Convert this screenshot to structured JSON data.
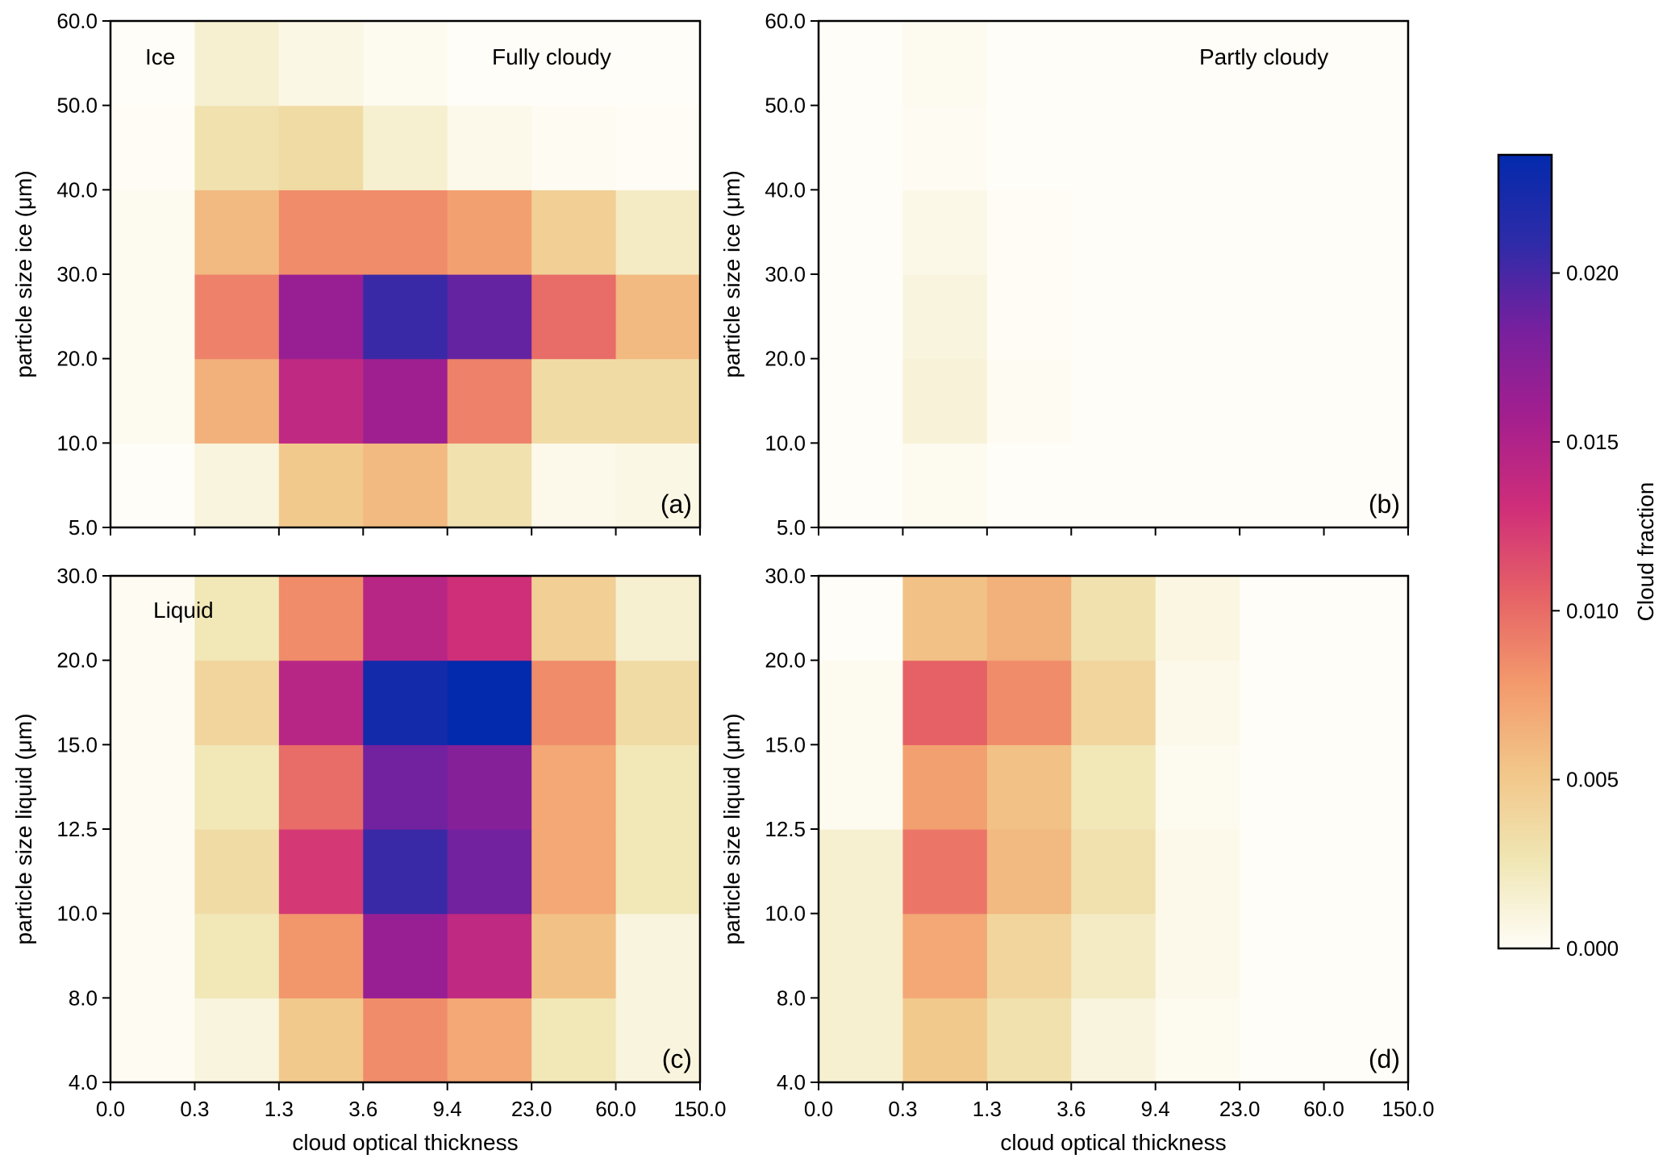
{
  "chart_data": {
    "type": "heatmap",
    "colormap": {
      "name": "magma_r",
      "stops": [
        "#fffdf7",
        "#f0e6b4",
        "#f2c689",
        "#f39a6c",
        "#e66266",
        "#cf2e79",
        "#a51f8e",
        "#78209e",
        "#2e2ba8",
        "#032aac"
      ]
    },
    "colorbar": {
      "label": "Cloud fraction",
      "min": 0.0,
      "max": 0.0235,
      "ticks": [
        "0.000",
        "0.005",
        "0.010",
        "0.015",
        "0.020"
      ],
      "tick_values": [
        0.0,
        0.005,
        0.01,
        0.015,
        0.02
      ]
    },
    "x_tick_labels": [
      "0.0",
      "0.3",
      "1.3",
      "3.6",
      "9.4",
      "23.0",
      "60.0",
      "150.0"
    ],
    "panels": [
      {
        "tag": "(a)",
        "notes": [
          "Ice",
          "Fully cloudy"
        ],
        "xlabel": "",
        "ylabel": "particle size ice  (μm)",
        "y_tick_labels": [
          "5.0",
          "10.0",
          "20.0",
          "30.0",
          "40.0",
          "50.0",
          "60.0"
        ],
        "show_x_tick_labels": false,
        "values": [
          [
            0.0,
            0.001,
            0.005,
            0.006,
            0.003,
            0.0005,
            0.0007
          ],
          [
            0.0003,
            0.0065,
            0.014,
            0.016,
            0.009,
            0.0035,
            0.0035
          ],
          [
            0.0003,
            0.009,
            0.0165,
            0.0205,
            0.019,
            0.01,
            0.006
          ],
          [
            0.0003,
            0.006,
            0.0085,
            0.0085,
            0.0075,
            0.0045,
            0.002
          ],
          [
            0.0001,
            0.003,
            0.0035,
            0.0015,
            0.0005,
            0.0002,
            0.0001
          ],
          [
            0.0,
            0.0015,
            0.0007,
            0.0003,
            0.0,
            0.0,
            0.0
          ]
        ]
      },
      {
        "tag": "(b)",
        "notes": [
          "Partly cloudy"
        ],
        "xlabel": "",
        "ylabel": "particle size ice  (μm)",
        "y_tick_labels": [
          "5.0",
          "10.0",
          "20.0",
          "30.0",
          "40.0",
          "50.0",
          "60.0"
        ],
        "show_x_tick_labels": false,
        "values": [
          [
            0.0,
            0.0003,
            0.0,
            0.0,
            0.0,
            0.0,
            0.0
          ],
          [
            0.0,
            0.0012,
            0.0002,
            0.0,
            0.0,
            0.0,
            0.0
          ],
          [
            0.0,
            0.001,
            0.0001,
            0.0,
            0.0,
            0.0,
            0.0
          ],
          [
            0.0,
            0.0006,
            0.0001,
            0.0,
            0.0,
            0.0,
            0.0
          ],
          [
            0.0,
            0.0002,
            0.0,
            0.0,
            0.0,
            0.0,
            0.0
          ],
          [
            0.0,
            0.0003,
            0.0,
            0.0,
            0.0,
            0.0,
            0.0
          ]
        ]
      },
      {
        "tag": "(c)",
        "notes": [
          "Liquid"
        ],
        "xlabel": "cloud optical thickness",
        "ylabel": "particle size liquid  (μm)",
        "y_tick_labels": [
          "4.0",
          "8.0",
          "10.0",
          "12.5",
          "15.0",
          "20.0",
          "30.0"
        ],
        "show_x_tick_labels": true,
        "values": [
          [
            0.0002,
            0.001,
            0.005,
            0.0085,
            0.007,
            0.0025,
            0.001
          ],
          [
            0.0002,
            0.0025,
            0.008,
            0.0165,
            0.014,
            0.0055,
            0.001
          ],
          [
            0.0002,
            0.0035,
            0.0125,
            0.0205,
            0.0185,
            0.007,
            0.0025
          ],
          [
            0.0002,
            0.0025,
            0.01,
            0.0185,
            0.0175,
            0.007,
            0.0025
          ],
          [
            0.0002,
            0.004,
            0.0145,
            0.0225,
            0.0235,
            0.0085,
            0.0035
          ],
          [
            0.0002,
            0.0025,
            0.0085,
            0.0145,
            0.013,
            0.0045,
            0.0015
          ]
        ]
      },
      {
        "tag": "(d)",
        "notes": [],
        "xlabel": "cloud optical thickness",
        "ylabel": "particle size liquid  (μm)",
        "y_tick_labels": [
          "4.0",
          "8.0",
          "10.0",
          "12.5",
          "15.0",
          "20.0",
          "30.0"
        ],
        "show_x_tick_labels": true,
        "values": [
          [
            0.0015,
            0.005,
            0.003,
            0.001,
            0.0003,
            0.0,
            0.0
          ],
          [
            0.0015,
            0.007,
            0.004,
            0.002,
            0.0005,
            0.0,
            0.0
          ],
          [
            0.0015,
            0.0095,
            0.006,
            0.003,
            0.0005,
            0.0,
            0.0
          ],
          [
            0.0003,
            0.0075,
            0.0055,
            0.0025,
            0.0003,
            0.0,
            0.0
          ],
          [
            0.0003,
            0.0105,
            0.0085,
            0.004,
            0.0005,
            0.0,
            0.0
          ],
          [
            0.0,
            0.0055,
            0.0065,
            0.003,
            0.0008,
            0.0,
            0.0
          ]
        ]
      }
    ]
  }
}
